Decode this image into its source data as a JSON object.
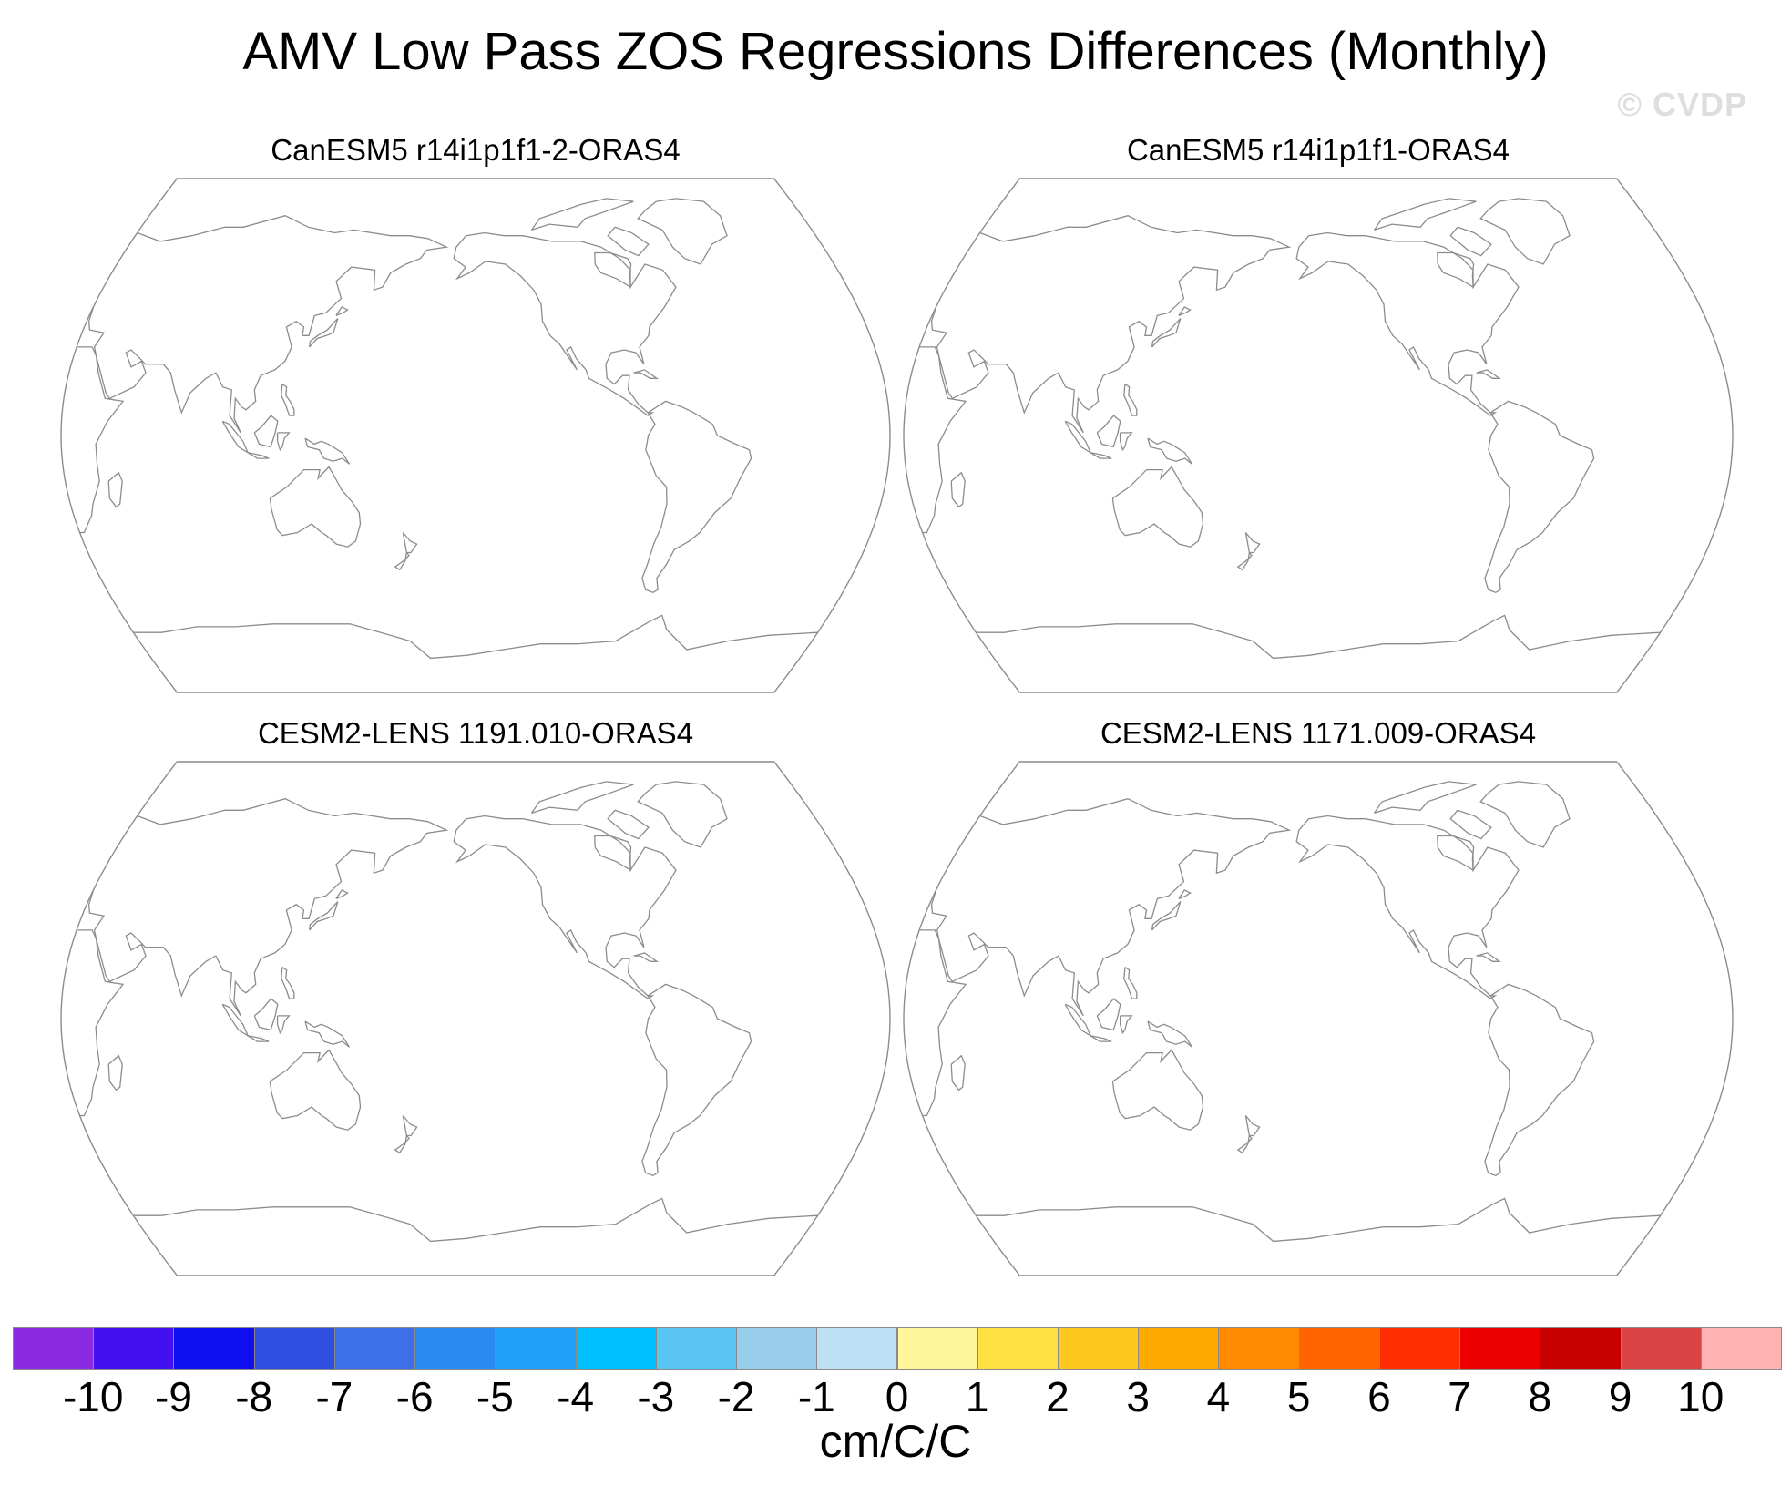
{
  "title": "AMV Low Pass ZOS Regressions Differences (Monthly)",
  "watermark": "© CVDP",
  "panels": [
    {
      "title": "CanESM5 r14i1p1f1-2-ORAS4"
    },
    {
      "title": "CanESM5 r14i1p1f1-ORAS4"
    },
    {
      "title": "CESM2-LENS 1191.010-ORAS4"
    },
    {
      "title": "CESM2-LENS 1171.009-ORAS4"
    }
  ],
  "colorbar": {
    "units": "cm/C/C",
    "labels": [
      "-10",
      "-9",
      "-8",
      "-7",
      "-6",
      "-5",
      "-4",
      "-3",
      "-2",
      "-1",
      "0",
      "1",
      "2",
      "3",
      "4",
      "5",
      "6",
      "7",
      "8",
      "9",
      "10"
    ],
    "colors": [
      "#8a2be2",
      "#4310f0",
      "#0f0ff0",
      "#2f4fe0",
      "#3d6fe8",
      "#2a8af2",
      "#1ea0f7",
      "#00c0ff",
      "#5ac4f2",
      "#98cceb",
      "#bde0f4",
      "#fff59a",
      "#ffe040",
      "#ffc81e",
      "#ffaa00",
      "#ff8a00",
      "#ff6400",
      "#ff2e00",
      "#ee0000",
      "#c80000",
      "#db4444",
      "#ffb3b3"
    ]
  }
}
